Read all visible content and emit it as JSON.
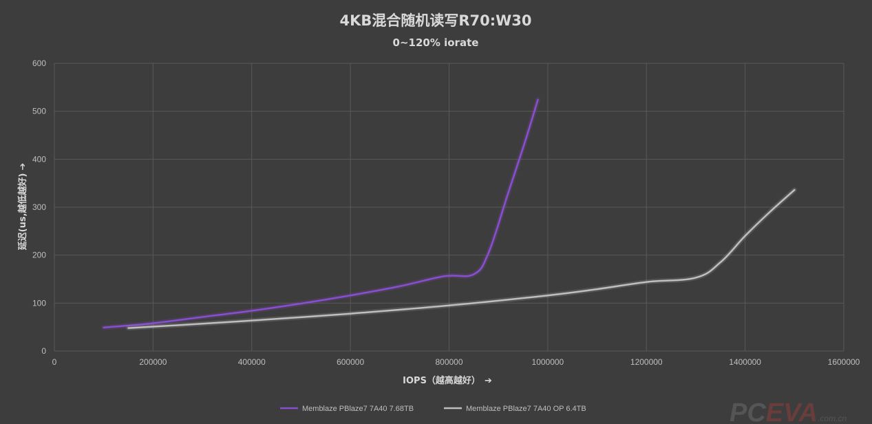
{
  "colors": {
    "background": "#3d3d3d",
    "grid": "#595959",
    "text": "#d9d9d9",
    "series_purple": "#8a4fd0",
    "series_gray": "#bfbfbf"
  },
  "chart_data": {
    "type": "line",
    "title": "4KB混合随机读写R70:W30",
    "subtitle": "0~120% iorate",
    "xlabel": "IOPS（越高越好）",
    "xlabel_arrow": "➔",
    "ylabel": "延迟(us,越低越好)",
    "ylabel_arrow": "➔",
    "xlim": [
      0,
      1600000
    ],
    "ylim": [
      0,
      600
    ],
    "x_ticks": [
      "0",
      "200000",
      "400000",
      "600000",
      "800000",
      "1000000",
      "1200000",
      "1400000",
      "1600000"
    ],
    "y_ticks": [
      "0",
      "100",
      "200",
      "300",
      "400",
      "500",
      "600"
    ],
    "grid": true,
    "legend_position": "bottom",
    "series": [
      {
        "name": "Memblaze PBlaze7 7A40 7.68TB",
        "color": "#8a4fd0",
        "x": [
          100000,
          200000,
          300000,
          400000,
          500000,
          600000,
          700000,
          790000,
          850000,
          880000,
          920000,
          955000,
          980000
        ],
        "y": [
          49,
          58,
          71,
          84,
          99,
          116,
          135,
          156,
          160,
          205,
          330,
          440,
          524
        ]
      },
      {
        "name": "Memblaze PBlaze7 7A40 OP 6.4TB",
        "color": "#bfbfbf",
        "x": [
          150000,
          300000,
          450000,
          600000,
          800000,
          1000000,
          1100000,
          1200000,
          1300000,
          1350000,
          1400000,
          1450000,
          1500000
        ],
        "y": [
          48,
          57,
          67,
          78,
          95,
          116,
          129,
          144,
          153,
          185,
          240,
          290,
          336
        ]
      }
    ]
  },
  "watermark": {
    "part1": "PC",
    "part2": "EVA",
    "part3": ".com.cn"
  }
}
